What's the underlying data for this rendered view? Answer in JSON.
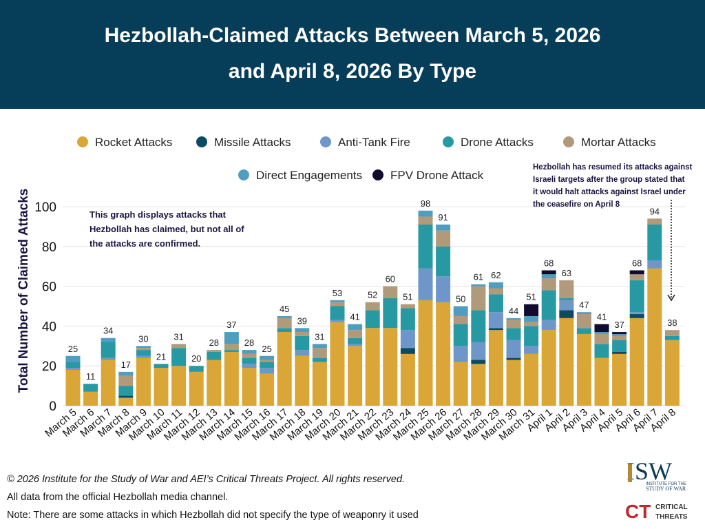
{
  "title_line1": "Hezbollah-Claimed Attacks Between March 5, 2026",
  "title_line2": "and April 8, 2026 By Type",
  "colors": {
    "header_bg": "#063E5A",
    "Rocket Attacks": "#D9A637",
    "Missile Attacks": "#0B4A63",
    "Anti-Tank Fire": "#6F96C8",
    "Drone Attacks": "#2799A3",
    "Mortar Attacks": "#B09A7A",
    "Direct Engagements": "#4F9EC0",
    "FPV Drone Attack": "#110B2E"
  },
  "chart_data": {
    "type": "bar",
    "stacked": true,
    "ylabel": "Total Number of Claimed Attacks",
    "xlabel": "",
    "ylim": [
      0,
      100
    ],
    "yticks": [
      0,
      20,
      40,
      60,
      80,
      100
    ],
    "grid": true,
    "legend_position": "top",
    "categories": [
      "March 5",
      "March 6",
      "March 7",
      "March 8",
      "March 9",
      "March 10",
      "March 11",
      "March 12",
      "March 13",
      "March 14",
      "March 15",
      "March 16",
      "March 17",
      "March 18",
      "March 19",
      "March 20",
      "March 21",
      "March 22",
      "March 23",
      "March 24",
      "March 25",
      "March 26",
      "March 27",
      "March 28",
      "March 29",
      "March 30",
      "March 31",
      "April 1",
      "April 2",
      "April 3",
      "April 4",
      "April 5",
      "April 6",
      "April 7",
      "April 8"
    ],
    "totals": [
      25,
      11,
      34,
      17,
      30,
      21,
      31,
      20,
      28,
      37,
      28,
      25,
      45,
      39,
      31,
      53,
      41,
      52,
      60,
      51,
      98,
      91,
      50,
      61,
      62,
      44,
      51,
      68,
      63,
      47,
      41,
      37,
      68,
      94,
      38
    ],
    "series": [
      {
        "name": "Rocket Attacks",
        "values": [
          18,
          7,
          23,
          4,
          24,
          19,
          20,
          17,
          23,
          27,
          19,
          16,
          37,
          25,
          22,
          42,
          30,
          39,
          39,
          26,
          53,
          52,
          22,
          21,
          38,
          23,
          26,
          38,
          44,
          36,
          24,
          26,
          44,
          69,
          33
        ]
      },
      {
        "name": "Missile Attacks",
        "values": [
          0,
          0,
          0,
          1,
          0,
          0,
          0,
          0,
          0,
          0,
          0,
          0,
          0,
          0,
          0,
          0,
          0,
          0,
          0,
          3,
          0,
          0,
          0,
          2,
          1,
          1,
          0,
          0,
          4,
          0,
          0,
          1,
          2,
          0,
          0
        ]
      },
      {
        "name": "Anti-Tank Fire",
        "values": [
          1,
          0,
          1,
          0,
          1,
          0,
          0,
          0,
          0,
          0,
          2,
          3,
          0,
          3,
          0,
          1,
          1,
          0,
          0,
          9,
          16,
          13,
          8,
          9,
          8,
          9,
          4,
          5,
          5,
          0,
          0,
          0,
          1,
          4,
          0
        ]
      },
      {
        "name": "Drone Attacks",
        "values": [
          3,
          4,
          8,
          5,
          3,
          2,
          9,
          3,
          4,
          1,
          3,
          3,
          2,
          7,
          2,
          7,
          3,
          9,
          15,
          11,
          22,
          15,
          11,
          16,
          9,
          6,
          10,
          15,
          1,
          3,
          7,
          6,
          16,
          18,
          2
        ]
      },
      {
        "name": "Mortar Attacks",
        "values": [
          0,
          0,
          0,
          5,
          1,
          0,
          2,
          0,
          1,
          3,
          2,
          1,
          5,
          2,
          5,
          2,
          4,
          4,
          6,
          2,
          4,
          8,
          4,
          12,
          3,
          4,
          2,
          6,
          9,
          7,
          5,
          2,
          3,
          3,
          3
        ]
      },
      {
        "name": "Direct Engagements",
        "values": [
          3,
          0,
          2,
          2,
          1,
          0,
          0,
          0,
          0,
          6,
          2,
          2,
          1,
          2,
          2,
          1,
          3,
          0,
          0,
          0,
          3,
          3,
          5,
          1,
          3,
          1,
          3,
          2,
          0,
          1,
          1,
          1,
          0,
          0,
          0
        ]
      },
      {
        "name": "FPV Drone Attack",
        "values": [
          0,
          0,
          0,
          0,
          0,
          0,
          0,
          0,
          0,
          0,
          0,
          0,
          0,
          0,
          0,
          0,
          0,
          0,
          0,
          0,
          0,
          0,
          0,
          0,
          0,
          0,
          6,
          2,
          0,
          0,
          4,
          1,
          2,
          0,
          0
        ]
      }
    ],
    "annotations": [
      "This graph displays attacks that Hezbollah has claimed, but not all of the attacks are confirmed.",
      "Hezbollah has resumed its attacks against Israeli targets after the group stated that it would halt attacks against Israel under the ceasefire on April 8"
    ]
  },
  "footer": {
    "copyright": "© 2026 Institute for the Study of War and AEI’s Critical Threats Project. All rights reserved.",
    "source": "All data from the official Hezbollah media channel.",
    "note": "Note: There are some attacks in which Hezbollah did not specify the type of weaponry it used"
  },
  "logos": {
    "isw": "ISW",
    "isw_sub1": "INSTITUTE FOR THE",
    "isw_sub2": "STUDY OF WAR",
    "ct": "CT",
    "ct_sub1": "CRITICAL",
    "ct_sub2": "THREATS"
  }
}
